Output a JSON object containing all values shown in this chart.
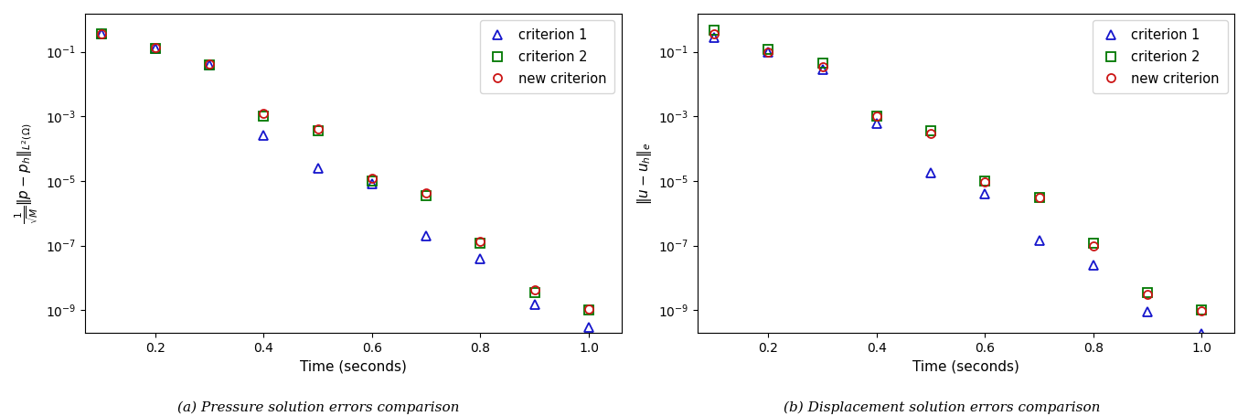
{
  "time": [
    0.1,
    0.2,
    0.3,
    0.4,
    0.5,
    0.6,
    0.7,
    0.8,
    0.9,
    1.0
  ],
  "pressure_c1": [
    0.35,
    0.13,
    0.04,
    0.00025,
    2.5e-05,
    8e-06,
    2e-07,
    4e-08,
    1.5e-09,
    3e-10
  ],
  "pressure_c2": [
    0.35,
    0.13,
    0.04,
    0.001,
    0.00035,
    1e-05,
    3.5e-06,
    1.2e-07,
    3.5e-09,
    1e-09
  ],
  "pressure_nc": [
    0.36,
    0.135,
    0.041,
    0.0012,
    0.00042,
    1.2e-05,
    4.2e-06,
    1.3e-07,
    4.2e-09,
    1.1e-09
  ],
  "disp_c1": [
    0.28,
    0.095,
    0.028,
    0.0006,
    1.8e-05,
    4e-06,
    1.4e-07,
    2.5e-08,
    9e-10,
    1.8e-10
  ],
  "disp_c2": [
    0.45,
    0.12,
    0.045,
    0.001,
    0.00035,
    1e-05,
    3e-06,
    1.2e-07,
    3.5e-09,
    1e-09
  ],
  "disp_nc": [
    0.35,
    0.1,
    0.035,
    0.001,
    0.0003,
    9e-06,
    3e-06,
    1e-07,
    3e-09,
    9.5e-10
  ],
  "color_c1": "#1515cc",
  "color_c2": "#007700",
  "color_nc": "#cc1515",
  "xlabel": "Time (seconds)",
  "ylabel_left": "$\\frac{1}{\\sqrt{M}}\\|p - p_h\\|_{L^2(\\Omega)}$",
  "ylabel_right": "$\\|u - u_h\\|_e$",
  "caption_left": "(a) Pressure solution errors comparison",
  "caption_right": "(b) Displacement solution errors comparison",
  "legend_labels": [
    "criterion 1",
    "criterion 2",
    "new criterion"
  ],
  "ylim": [
    2e-10,
    1.5
  ],
  "xlim": [
    0.07,
    1.06
  ],
  "yticks": [
    1e-09,
    1e-07,
    1e-05,
    0.001,
    0.1
  ]
}
